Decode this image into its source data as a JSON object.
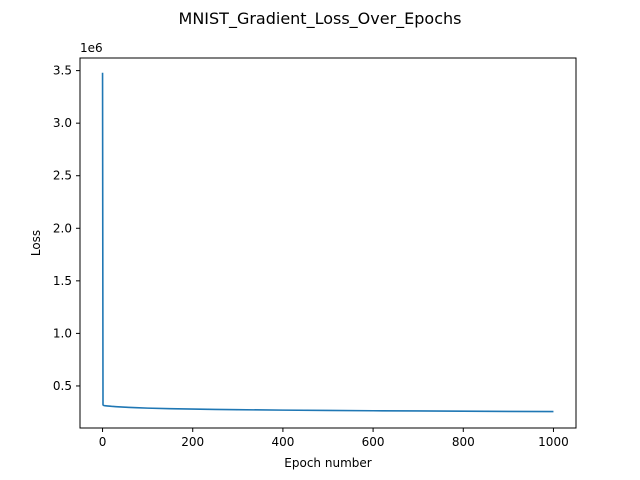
{
  "chart_data": {
    "type": "line",
    "title": "MNIST_Gradient_Loss_Over_Epochs",
    "xlabel": "Epoch number",
    "ylabel": "Loss",
    "y_offset_label": "1e6",
    "xlim": [
      -50,
      1050
    ],
    "ylim": [
      0.1,
      3.62
    ],
    "xticks": [
      0,
      200,
      400,
      600,
      800,
      1000
    ],
    "xtick_labels": [
      "0",
      "200",
      "400",
      "600",
      "800",
      "1000"
    ],
    "yticks": [
      0.5,
      1.0,
      1.5,
      2.0,
      2.5,
      3.0,
      3.5
    ],
    "ytick_labels": [
      "0.5",
      "1.0",
      "1.5",
      "2.0",
      "2.5",
      "3.0",
      "3.5"
    ],
    "grid": false,
    "legend": "none",
    "series": [
      {
        "color": "#1f77b4",
        "x": [
          0,
          1,
          2,
          5,
          10,
          20,
          30,
          50,
          75,
          100,
          150,
          200,
          250,
          300,
          400,
          500,
          600,
          700,
          800,
          900,
          1000
        ],
        "y": [
          3.48,
          0.32,
          0.315,
          0.312,
          0.31,
          0.306,
          0.303,
          0.298,
          0.293,
          0.289,
          0.284,
          0.28,
          0.277,
          0.274,
          0.27,
          0.267,
          0.264,
          0.262,
          0.26,
          0.258,
          0.256
        ]
      }
    ]
  }
}
